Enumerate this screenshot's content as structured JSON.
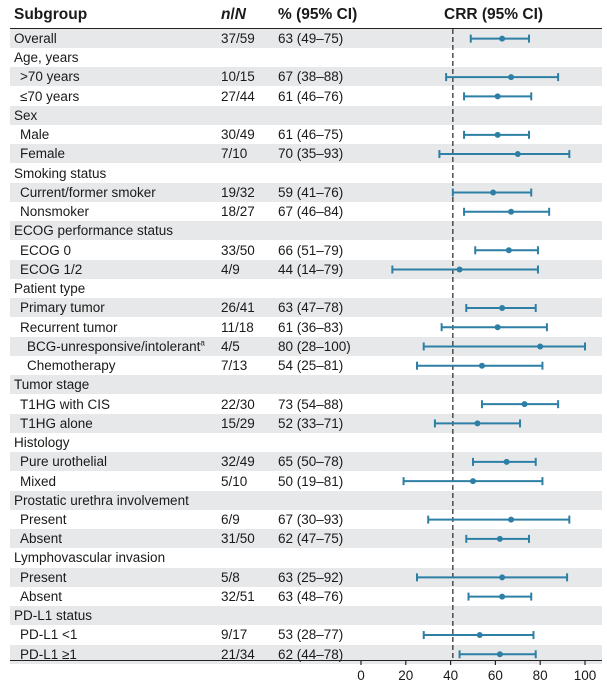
{
  "header": {
    "subgroup": "Subgroup",
    "n_over_n_italic_left": "n",
    "n_over_n_slash": "/",
    "n_over_n_italic_right": "N",
    "percent_ci": "% (95% CI)",
    "crr_ci": "CRR (95% CI)"
  },
  "rows": [
    {
      "label": "Overall",
      "n": "37/59",
      "ci": "63 (49–75)",
      "level": "sub0",
      "shade": true
    },
    {
      "label": "Age, years",
      "n": "",
      "ci": "",
      "level": "header",
      "shade": false
    },
    {
      "label": ">70 years",
      "n": "10/15",
      "ci": "67 (38–88)",
      "level": "sub",
      "shade": true
    },
    {
      "label": "≤70 years",
      "n": "27/44",
      "ci": "61 (46–76)",
      "level": "sub",
      "shade": false
    },
    {
      "label": "Sex",
      "n": "",
      "ci": "",
      "level": "header",
      "shade": true
    },
    {
      "label": "Male",
      "n": "30/49",
      "ci": "61 (46–75)",
      "level": "sub",
      "shade": false
    },
    {
      "label": "Female",
      "n": "7/10",
      "ci": "70 (35–93)",
      "level": "sub",
      "shade": true
    },
    {
      "label": "Smoking status",
      "n": "",
      "ci": "",
      "level": "header",
      "shade": false
    },
    {
      "label": "Current/former smoker",
      "n": "19/32",
      "ci": "59 (41–76)",
      "level": "sub",
      "shade": true
    },
    {
      "label": "Nonsmoker",
      "n": "18/27",
      "ci": "67 (46–84)",
      "level": "sub",
      "shade": false
    },
    {
      "label": "ECOG performance status",
      "n": "",
      "ci": "",
      "level": "header",
      "shade": true
    },
    {
      "label": "ECOG 0",
      "n": "33/50",
      "ci": "66 (51–79)",
      "level": "sub",
      "shade": false
    },
    {
      "label": "ECOG 1/2",
      "n": "4/9",
      "ci": "44 (14–79)",
      "level": "sub",
      "shade": true
    },
    {
      "label": "Patient type",
      "n": "",
      "ci": "",
      "level": "header",
      "shade": false
    },
    {
      "label": "Primary tumor",
      "n": "26/41",
      "ci": "63 (47–78)",
      "level": "sub",
      "shade": true
    },
    {
      "label": "Recurrent tumor",
      "n": "11/18",
      "ci": "61 (36–83)",
      "level": "sub",
      "shade": false
    },
    {
      "label": "BCG-unresponsive/intolerant",
      "sup": "a",
      "n": "4/5",
      "ci": "80 (28–100)",
      "level": "subsub",
      "shade": true
    },
    {
      "label": "Chemotherapy",
      "n": "7/13",
      "ci": "54 (25–81)",
      "level": "subsub",
      "shade": false
    },
    {
      "label": "Tumor stage",
      "n": "",
      "ci": "",
      "level": "header",
      "shade": true
    },
    {
      "label": "T1HG with CIS",
      "n": "22/30",
      "ci": "73 (54–88)",
      "level": "sub",
      "shade": false
    },
    {
      "label": "T1HG alone",
      "n": "15/29",
      "ci": "52 (33–71)",
      "level": "sub",
      "shade": true
    },
    {
      "label": "Histology",
      "n": "",
      "ci": "",
      "level": "header",
      "shade": false
    },
    {
      "label": "Pure urothelial",
      "n": "32/49",
      "ci": "65 (50–78)",
      "level": "sub",
      "shade": true
    },
    {
      "label": "Mixed",
      "n": "5/10",
      "ci": "50 (19–81)",
      "level": "sub",
      "shade": false
    },
    {
      "label": "Prostatic urethra involvement",
      "n": "",
      "ci": "",
      "level": "header",
      "shade": true
    },
    {
      "label": "Present",
      "n": "6/9",
      "ci": "67 (30–93)",
      "level": "sub",
      "shade": false
    },
    {
      "label": "Absent",
      "n": "31/50",
      "ci": "62 (47–75)",
      "level": "sub",
      "shade": true
    },
    {
      "label": "Lymphovascular invasion",
      "n": "",
      "ci": "",
      "level": "header",
      "shade": false
    },
    {
      "label": "Present",
      "n": "5/8",
      "ci": "63 (25–92)",
      "level": "sub",
      "shade": true
    },
    {
      "label": "Absent",
      "n": "32/51",
      "ci": "63 (48–76)",
      "level": "sub",
      "shade": false
    },
    {
      "label": "PD-L1 status",
      "n": "",
      "ci": "",
      "level": "header",
      "shade": true
    },
    {
      "label": "PD-L1 <1",
      "n": "9/17",
      "ci": "53 (28–77)",
      "level": "sub",
      "shade": false
    },
    {
      "label": "PD-L1 ≥1",
      "n": "21/34",
      "ci": "62 (44–78)",
      "level": "sub",
      "shade": true
    }
  ],
  "chart_data": {
    "type": "forest",
    "title": "CRR (95% CI)",
    "xlabel": "",
    "xlim": [
      0,
      100
    ],
    "xticks": [
      0,
      20,
      40,
      60,
      80,
      100
    ],
    "reference_line": 41,
    "color": "#2e7fa6",
    "series": [
      {
        "name": "Overall",
        "estimate": 63,
        "lower": 49,
        "upper": 75
      },
      {
        "name": ">70 years",
        "estimate": 67,
        "lower": 38,
        "upper": 88
      },
      {
        "name": "≤70 years",
        "estimate": 61,
        "lower": 46,
        "upper": 76
      },
      {
        "name": "Male",
        "estimate": 61,
        "lower": 46,
        "upper": 75
      },
      {
        "name": "Female",
        "estimate": 70,
        "lower": 35,
        "upper": 93
      },
      {
        "name": "Current/former smoker",
        "estimate": 59,
        "lower": 41,
        "upper": 76
      },
      {
        "name": "Nonsmoker",
        "estimate": 67,
        "lower": 46,
        "upper": 84
      },
      {
        "name": "ECOG 0",
        "estimate": 66,
        "lower": 51,
        "upper": 79
      },
      {
        "name": "ECOG 1/2",
        "estimate": 44,
        "lower": 14,
        "upper": 79
      },
      {
        "name": "Primary tumor",
        "estimate": 63,
        "lower": 47,
        "upper": 78
      },
      {
        "name": "Recurrent tumor",
        "estimate": 61,
        "lower": 36,
        "upper": 83
      },
      {
        "name": "BCG-unresponsive/intolerant",
        "estimate": 80,
        "lower": 28,
        "upper": 100
      },
      {
        "name": "Chemotherapy",
        "estimate": 54,
        "lower": 25,
        "upper": 81
      },
      {
        "name": "T1HG with CIS",
        "estimate": 73,
        "lower": 54,
        "upper": 88
      },
      {
        "name": "T1HG alone",
        "estimate": 52,
        "lower": 33,
        "upper": 71
      },
      {
        "name": "Pure urothelial",
        "estimate": 65,
        "lower": 50,
        "upper": 78
      },
      {
        "name": "Mixed",
        "estimate": 50,
        "lower": 19,
        "upper": 81
      },
      {
        "name": "Prostatic urethra involvement: Present",
        "estimate": 67,
        "lower": 30,
        "upper": 93
      },
      {
        "name": "Prostatic urethra involvement: Absent",
        "estimate": 62,
        "lower": 47,
        "upper": 75
      },
      {
        "name": "Lymphovascular invasion: Present",
        "estimate": 63,
        "lower": 25,
        "upper": 92
      },
      {
        "name": "Lymphovascular invasion: Absent",
        "estimate": 63,
        "lower": 48,
        "upper": 76
      },
      {
        "name": "PD-L1 <1",
        "estimate": 53,
        "lower": 28,
        "upper": 77
      },
      {
        "name": "PD-L1 ≥1",
        "estimate": 62,
        "lower": 44,
        "upper": 78
      }
    ]
  }
}
